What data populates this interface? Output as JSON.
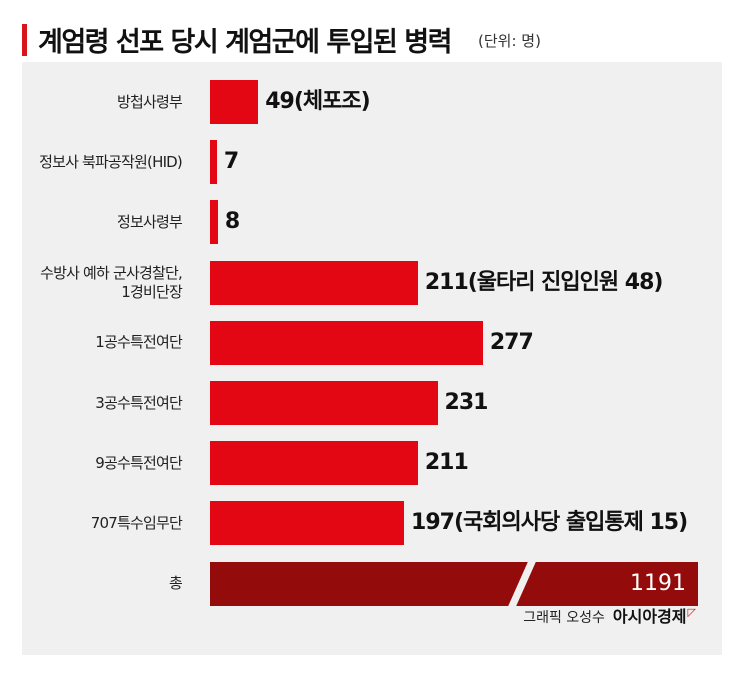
{
  "header": {
    "title": "계엄령 선포 당시 계엄군에 투입된 병력",
    "unit": "(단위: 명)"
  },
  "chart_data": {
    "type": "bar",
    "orientation": "horizontal",
    "title": "계엄령 선포 당시 계엄군에 투입된 병력",
    "unit": "(단위: 명)",
    "categories": [
      "방첩사령부",
      "정보사 북파공작원(HID)",
      "정보사령부",
      "수방사 예하 군사경찰단, 1경비단장",
      "1공수특전여단",
      "3공수특전여단",
      "9공수특전여단",
      "707특수임무단"
    ],
    "label_lines": [
      [
        "방첩사령부"
      ],
      [
        "정보사 북파공작원(HID)"
      ],
      [
        "정보사령부"
      ],
      [
        "수방사 예하 군사경찰단,",
        "1경비단장"
      ],
      [
        "1공수특전여단"
      ],
      [
        "3공수특전여단"
      ],
      [
        "9공수특전여단"
      ],
      [
        "707특수임무단"
      ]
    ],
    "values": [
      49,
      7,
      8,
      211,
      277,
      231,
      211,
      197
    ],
    "value_labels": [
      "49(체포조)",
      "7",
      "8",
      "211(울타리 진입인원 48)",
      "277",
      "231",
      "211",
      "197(국회의사당 출입통제 15)"
    ],
    "total": {
      "label": "총",
      "value": 1191,
      "value_label": "1191",
      "axis_break": true
    },
    "colors": {
      "bar": "#e30613",
      "total_bar": "#930b0b",
      "accent": "#d7161c",
      "background": "#f0f0f0"
    },
    "grid": false,
    "legend": "none"
  },
  "footer": {
    "credit": "그래픽 오성수",
    "brand": "아시아경제"
  }
}
